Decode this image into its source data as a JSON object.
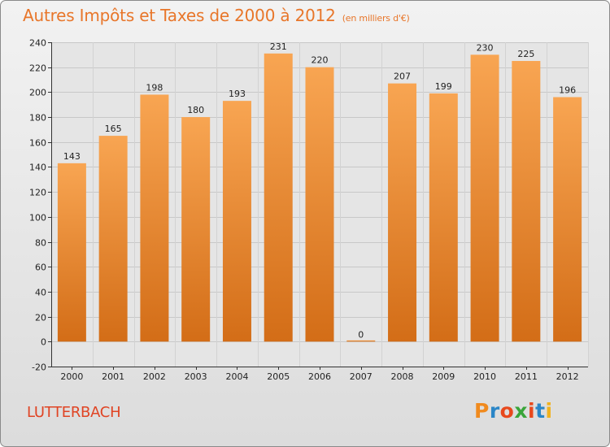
{
  "header": {
    "title": "Autres Impôts et Taxes de 2000 à 2012",
    "subtitle": "(en milliers d'€)"
  },
  "footer": {
    "town": "LUTTERBACH",
    "brand": "Proxiti"
  },
  "colors": {
    "bar_top": "#f8a552",
    "bar_bottom": "#d36d17",
    "title": "#e8762a",
    "town": "#e04424"
  },
  "chart_data": {
    "type": "bar",
    "title": "Autres Impôts et Taxes de 2000 à 2012",
    "subtitle": "(en milliers d'€)",
    "categories": [
      "2000",
      "2001",
      "2002",
      "2003",
      "2004",
      "2005",
      "2006",
      "2007",
      "2008",
      "2009",
      "2010",
      "2011",
      "2012"
    ],
    "values": [
      143,
      165,
      198,
      180,
      193,
      231,
      220,
      0,
      207,
      199,
      230,
      225,
      196
    ],
    "ylim": [
      -20,
      240
    ],
    "yticks": [
      -20,
      0,
      20,
      40,
      60,
      80,
      100,
      120,
      140,
      160,
      180,
      200,
      220,
      240
    ],
    "grid": true,
    "xlabel": "",
    "ylabel": ""
  }
}
